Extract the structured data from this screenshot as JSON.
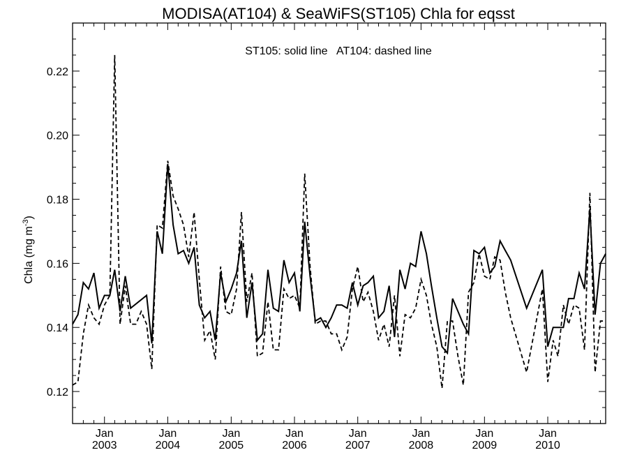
{
  "chart_data": {
    "type": "line",
    "title": "MODISA(AT104) & SeaWiFS(ST105)  Chla for eqsst",
    "annotation": "ST105: solid line   AT104: dashed line",
    "ylabel_main": "Chla (mg m",
    "ylabel_sup": "-3",
    "ylabel_close": ")",
    "xlabel": "",
    "xlim": [
      "2002-07-01",
      "2010-12-01"
    ],
    "ylim": [
      0.11,
      0.235
    ],
    "yticks": [
      {
        "value": 0.12,
        "label": "0.12"
      },
      {
        "value": 0.14,
        "label": "0.14"
      },
      {
        "value": 0.16,
        "label": "0.16"
      },
      {
        "value": 0.18,
        "label": "0.18"
      },
      {
        "value": 0.2,
        "label": "0.20"
      },
      {
        "value": 0.22,
        "label": "0.22"
      }
    ],
    "xticks": [
      {
        "date": "2003-01-01",
        "month": "Jan",
        "year": "2003"
      },
      {
        "date": "2004-01-01",
        "month": "Jan",
        "year": "2004"
      },
      {
        "date": "2005-01-01",
        "month": "Jan",
        "year": "2005"
      },
      {
        "date": "2006-01-01",
        "month": "Jan",
        "year": "2006"
      },
      {
        "date": "2007-01-01",
        "month": "Jan",
        "year": "2007"
      },
      {
        "date": "2008-01-01",
        "month": "Jan",
        "year": "2008"
      },
      {
        "date": "2009-01-01",
        "month": "Jan",
        "year": "2009"
      },
      {
        "date": "2010-01-01",
        "month": "Jan",
        "year": "2010"
      }
    ],
    "grid": false,
    "series": [
      {
        "style": "solid",
        "color": "#000000",
        "points": [
          [
            "2002-07-01",
            0.141
          ],
          [
            "2002-08-01",
            0.144
          ],
          [
            "2002-09-01",
            0.154
          ],
          [
            "2002-10-01",
            0.152
          ],
          [
            "2002-11-01",
            0.157
          ],
          [
            "2002-12-01",
            0.146
          ],
          [
            "2003-01-01",
            0.15
          ],
          [
            "2003-02-01",
            0.15
          ],
          [
            "2003-03-01",
            0.158
          ],
          [
            "2003-04-01",
            0.145
          ],
          [
            "2003-05-01",
            0.156
          ],
          [
            "2003-06-01",
            0.146
          ],
          [
            "2003-09-01",
            0.15
          ],
          [
            "2003-10-01",
            0.135
          ],
          [
            "2003-11-01",
            0.17
          ],
          [
            "2003-12-01",
            0.163
          ],
          [
            "2004-01-01",
            0.191
          ],
          [
            "2004-02-01",
            0.172
          ],
          [
            "2004-03-01",
            0.163
          ],
          [
            "2004-04-01",
            0.164
          ],
          [
            "2004-05-01",
            0.16
          ],
          [
            "2004-06-01",
            0.165
          ],
          [
            "2004-07-01",
            0.147
          ],
          [
            "2004-08-01",
            0.143
          ],
          [
            "2004-09-01",
            0.145
          ],
          [
            "2004-10-01",
            0.136
          ],
          [
            "2004-11-01",
            0.157
          ],
          [
            "2004-12-01",
            0.148
          ],
          [
            "2005-01-01",
            0.152
          ],
          [
            "2005-02-01",
            0.157
          ],
          [
            "2005-03-01",
            0.167
          ],
          [
            "2005-04-01",
            0.143
          ],
          [
            "2005-05-01",
            0.154
          ],
          [
            "2005-06-01",
            0.136
          ],
          [
            "2005-07-01",
            0.138
          ],
          [
            "2005-08-01",
            0.158
          ],
          [
            "2005-09-01",
            0.146
          ],
          [
            "2005-10-01",
            0.145
          ],
          [
            "2005-11-01",
            0.161
          ],
          [
            "2005-12-01",
            0.154
          ],
          [
            "2006-01-01",
            0.157
          ],
          [
            "2006-02-01",
            0.145
          ],
          [
            "2006-03-01",
            0.173
          ],
          [
            "2006-04-01",
            0.156
          ],
          [
            "2006-05-01",
            0.142
          ],
          [
            "2006-06-01",
            0.143
          ],
          [
            "2006-07-01",
            0.14
          ],
          [
            "2006-08-01",
            0.143
          ],
          [
            "2006-09-01",
            0.147
          ],
          [
            "2006-10-01",
            0.147
          ],
          [
            "2006-11-01",
            0.146
          ],
          [
            "2006-12-01",
            0.154
          ],
          [
            "2007-01-01",
            0.147
          ],
          [
            "2007-02-01",
            0.153
          ],
          [
            "2007-03-01",
            0.154
          ],
          [
            "2007-04-01",
            0.156
          ],
          [
            "2007-05-01",
            0.143
          ],
          [
            "2007-06-01",
            0.145
          ],
          [
            "2007-07-01",
            0.153
          ],
          [
            "2007-08-01",
            0.137
          ],
          [
            "2007-09-01",
            0.158
          ],
          [
            "2007-10-01",
            0.152
          ],
          [
            "2007-11-01",
            0.16
          ],
          [
            "2007-12-01",
            0.159
          ],
          [
            "2008-01-01",
            0.17
          ],
          [
            "2008-02-01",
            0.163
          ],
          [
            "2008-03-01",
            0.153
          ],
          [
            "2008-04-01",
            0.143
          ],
          [
            "2008-05-01",
            0.134
          ],
          [
            "2008-06-01",
            0.132
          ],
          [
            "2008-07-01",
            0.149
          ],
          [
            "2008-08-01",
            0.145
          ],
          [
            "2008-09-01",
            0.141
          ],
          [
            "2008-10-01",
            0.138
          ],
          [
            "2008-11-01",
            0.164
          ],
          [
            "2008-12-01",
            0.163
          ],
          [
            "2009-01-01",
            0.165
          ],
          [
            "2009-02-01",
            0.157
          ],
          [
            "2009-03-01",
            0.159
          ],
          [
            "2009-04-01",
            0.167
          ],
          [
            "2009-05-01",
            0.164
          ],
          [
            "2009-06-01",
            0.161
          ],
          [
            "2009-09-01",
            0.146
          ],
          [
            "2009-12-01",
            0.158
          ],
          [
            "2010-01-01",
            0.134
          ],
          [
            "2010-02-01",
            0.14
          ],
          [
            "2010-03-01",
            0.14
          ],
          [
            "2010-04-01",
            0.14
          ],
          [
            "2010-05-01",
            0.149
          ],
          [
            "2010-06-01",
            0.149
          ],
          [
            "2010-07-01",
            0.157
          ],
          [
            "2010-08-01",
            0.152
          ],
          [
            "2010-09-01",
            0.177
          ],
          [
            "2010-10-01",
            0.144
          ],
          [
            "2010-11-01",
            0.16
          ],
          [
            "2010-12-01",
            0.163
          ]
        ]
      },
      {
        "style": "dashed",
        "color": "#000000",
        "points": [
          [
            "2002-07-01",
            0.122
          ],
          [
            "2002-08-01",
            0.123
          ],
          [
            "2002-09-01",
            0.138
          ],
          [
            "2002-10-01",
            0.147
          ],
          [
            "2002-11-01",
            0.143
          ],
          [
            "2002-12-01",
            0.141
          ],
          [
            "2003-01-01",
            0.147
          ],
          [
            "2003-02-01",
            0.15
          ],
          [
            "2003-03-01",
            0.225
          ],
          [
            "2003-04-01",
            0.141
          ],
          [
            "2003-05-01",
            0.153
          ],
          [
            "2003-06-01",
            0.141
          ],
          [
            "2003-07-01",
            0.141
          ],
          [
            "2003-08-01",
            0.145
          ],
          [
            "2003-09-01",
            0.141
          ],
          [
            "2003-10-01",
            0.127
          ],
          [
            "2003-11-01",
            0.172
          ],
          [
            "2003-12-01",
            0.171
          ],
          [
            "2004-01-01",
            0.192
          ],
          [
            "2004-02-01",
            0.181
          ],
          [
            "2004-03-01",
            0.177
          ],
          [
            "2004-04-01",
            0.172
          ],
          [
            "2004-05-01",
            0.162
          ],
          [
            "2004-06-01",
            0.176
          ],
          [
            "2004-07-01",
            0.155
          ],
          [
            "2004-08-01",
            0.136
          ],
          [
            "2004-09-01",
            0.139
          ],
          [
            "2004-10-01",
            0.13
          ],
          [
            "2004-11-01",
            0.159
          ],
          [
            "2004-12-01",
            0.145
          ],
          [
            "2005-01-01",
            0.144
          ],
          [
            "2005-02-01",
            0.152
          ],
          [
            "2005-03-01",
            0.176
          ],
          [
            "2005-04-01",
            0.148
          ],
          [
            "2005-05-01",
            0.157
          ],
          [
            "2005-06-01",
            0.131
          ],
          [
            "2005-07-01",
            0.132
          ],
          [
            "2005-08-01",
            0.148
          ],
          [
            "2005-09-01",
            0.133
          ],
          [
            "2005-10-01",
            0.133
          ],
          [
            "2005-11-01",
            0.152
          ],
          [
            "2005-12-01",
            0.149
          ],
          [
            "2006-01-01",
            0.15
          ],
          [
            "2006-02-01",
            0.146
          ],
          [
            "2006-03-01",
            0.188
          ],
          [
            "2006-04-01",
            0.159
          ],
          [
            "2006-05-01",
            0.141
          ],
          [
            "2006-06-01",
            0.142
          ],
          [
            "2006-07-01",
            0.142
          ],
          [
            "2006-08-01",
            0.138
          ],
          [
            "2006-09-01",
            0.138
          ],
          [
            "2006-10-01",
            0.133
          ],
          [
            "2006-11-01",
            0.137
          ],
          [
            "2006-12-01",
            0.152
          ],
          [
            "2007-01-01",
            0.159
          ],
          [
            "2007-02-01",
            0.148
          ],
          [
            "2007-03-01",
            0.151
          ],
          [
            "2007-04-01",
            0.145
          ],
          [
            "2007-05-01",
            0.136
          ],
          [
            "2007-06-01",
            0.141
          ],
          [
            "2007-07-01",
            0.134
          ],
          [
            "2007-08-01",
            0.15
          ],
          [
            "2007-09-01",
            0.131
          ],
          [
            "2007-10-01",
            0.144
          ],
          [
            "2007-11-01",
            0.143
          ],
          [
            "2007-12-01",
            0.146
          ],
          [
            "2008-01-01",
            0.155
          ],
          [
            "2008-02-01",
            0.15
          ],
          [
            "2008-03-01",
            0.141
          ],
          [
            "2008-04-01",
            0.134
          ],
          [
            "2008-05-01",
            0.121
          ],
          [
            "2008-06-01",
            0.142
          ],
          [
            "2008-07-01",
            0.142
          ],
          [
            "2008-08-01",
            0.131
          ],
          [
            "2008-09-01",
            0.122
          ],
          [
            "2008-10-01",
            0.151
          ],
          [
            "2008-11-01",
            0.154
          ],
          [
            "2008-12-01",
            0.163
          ],
          [
            "2009-01-01",
            0.156
          ],
          [
            "2009-02-01",
            0.155
          ],
          [
            "2009-03-01",
            0.162
          ],
          [
            "2009-04-01",
            0.161
          ],
          [
            "2009-05-01",
            0.151
          ],
          [
            "2009-06-01",
            0.143
          ],
          [
            "2009-09-01",
            0.126
          ],
          [
            "2009-12-01",
            0.152
          ],
          [
            "2010-01-01",
            0.123
          ],
          [
            "2010-02-01",
            0.136
          ],
          [
            "2010-03-01",
            0.131
          ],
          [
            "2010-04-01",
            0.147
          ],
          [
            "2010-05-01",
            0.141
          ],
          [
            "2010-06-01",
            0.147
          ],
          [
            "2010-07-01",
            0.146
          ],
          [
            "2010-08-01",
            0.133
          ],
          [
            "2010-09-01",
            0.182
          ],
          [
            "2010-10-01",
            0.126
          ],
          [
            "2010-11-01",
            0.142
          ],
          [
            "2010-12-01",
            0.142
          ]
        ]
      }
    ]
  }
}
